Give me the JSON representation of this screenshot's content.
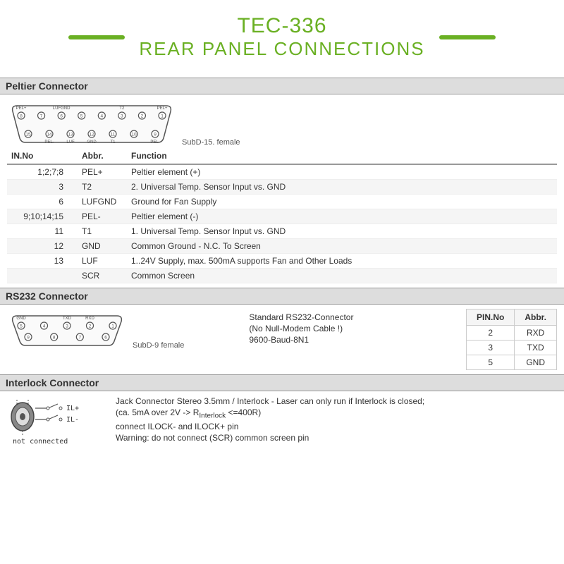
{
  "header": {
    "title": "TEC-336",
    "subtitle": "REAR PANEL CONNECTIONS",
    "bar_color": "#6ab023",
    "title_color": "#6ab023",
    "title_fontsize": 30,
    "subtitle_fontsize": 26
  },
  "peltier": {
    "section_title": "Peltier Connector",
    "connector_label": "SubD-15. female",
    "connector": {
      "outline_color": "#555555",
      "fill_color": "#fdfdfd",
      "pin_stroke": "#555555",
      "pin_fill": "#ffffff",
      "top_pins": [
        {
          "num": "8",
          "label": "PEL+"
        },
        {
          "num": "7",
          "label": ""
        },
        {
          "num": "6",
          "label": "LUFGND"
        },
        {
          "num": "5",
          "label": ""
        },
        {
          "num": "4",
          "label": ""
        },
        {
          "num": "3",
          "label": "T2"
        },
        {
          "num": "2",
          "label": ""
        },
        {
          "num": "1",
          "label": "PEL+"
        }
      ],
      "bottom_pins": [
        {
          "num": "15",
          "label": ""
        },
        {
          "num": "14",
          "label": "PEL-"
        },
        {
          "num": "13",
          "label": "LUF"
        },
        {
          "num": "12",
          "label": "GND"
        },
        {
          "num": "11",
          "label": "T1"
        },
        {
          "num": "10",
          "label": ""
        },
        {
          "num": "9",
          "label": "PEL-"
        }
      ]
    },
    "table": {
      "columns": [
        "IN.No",
        "Abbr.",
        "Function"
      ],
      "rows": [
        [
          "1;2;7;8",
          "PEL+",
          "Peltier element (+)"
        ],
        [
          "3",
          "T2",
          "2. Universal Temp. Sensor Input vs. GND"
        ],
        [
          "6",
          "LUFGND",
          "Ground for Fan Supply"
        ],
        [
          "9;10;14;15",
          "PEL-",
          "Peltier element (-)"
        ],
        [
          "11",
          "T1",
          "1. Universal Temp. Sensor Input vs. GND"
        ],
        [
          "12",
          "GND",
          "Common Ground - N.C. To Screen"
        ],
        [
          "13",
          "LUF",
          "1..24V Supply, max. 500mA supports Fan and Other Loads"
        ],
        [
          "",
          "SCR",
          "Common Screen"
        ]
      ]
    }
  },
  "rs232": {
    "section_title": "RS232 Connector",
    "connector_label": "SubD-9 female",
    "description_line1": "Standard RS232-Connector",
    "description_line2": "(No Null-Modem Cable !)",
    "description_line3": " 9600-Baud-8N1",
    "connector": {
      "top_pins": [
        {
          "num": "5",
          "label": "GND"
        },
        {
          "num": "4",
          "label": ""
        },
        {
          "num": "3",
          "label": "TXD"
        },
        {
          "num": "2",
          "label": "RXD"
        },
        {
          "num": "1",
          "label": ""
        }
      ],
      "bottom_pins": [
        {
          "num": "9",
          "label": ""
        },
        {
          "num": "8",
          "label": ""
        },
        {
          "num": "7",
          "label": ""
        },
        {
          "num": "6",
          "label": ""
        }
      ]
    },
    "table": {
      "columns": [
        "PIN.No",
        "Abbr."
      ],
      "rows": [
        [
          "2",
          "RXD"
        ],
        [
          "3",
          "TXD"
        ],
        [
          "5",
          "GND"
        ]
      ]
    }
  },
  "interlock": {
    "section_title": "Interlock Connector",
    "text_line1": "Jack Connector Stereo 3.5mm  /  Interlock - Laser can only run if Interlock is closed;",
    "text_line2_pre": "(ca. 5mA over 2V -> R",
    "text_line2_sub": "Interlock",
    "text_line2_post": " <=400R)",
    "text_line3": "connect ILOCK- and ILOCK+ pin",
    "text_line4": "Warning: do not connect (SCR) common screen pin",
    "jack": {
      "outer_color": "#555555",
      "inner_color": "#d0d0d0",
      "il_plus": "IL+",
      "il_minus": "IL-",
      "not_connected": "not connected"
    }
  },
  "colors": {
    "section_header_bg": "#dddddd",
    "border": "#999999",
    "table_border": "#cccccc",
    "row_alt": "#f5f5f5"
  }
}
